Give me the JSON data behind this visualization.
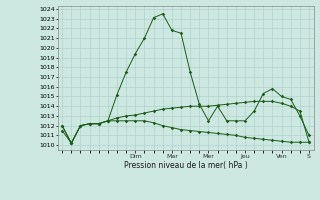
{
  "title": "Pression niveau de la mer( hPa )",
  "background_color": "#cce8e0",
  "grid_color": "#aacccc",
  "line_color": "#1a5c1a",
  "ylim": [
    1010,
    1024
  ],
  "yticks": [
    1010,
    1011,
    1012,
    1013,
    1014,
    1015,
    1016,
    1017,
    1018,
    1019,
    1020,
    1021,
    1022,
    1023,
    1024
  ],
  "day_labels": [
    "Dim",
    "Mar",
    "Mer",
    "Jeu",
    "Ven",
    "S"
  ],
  "day_positions": [
    8,
    12,
    16,
    20,
    24,
    27
  ],
  "line1_x": [
    0,
    1,
    2,
    3,
    4,
    5,
    6,
    7,
    8,
    9,
    10,
    11,
    12,
    13,
    14,
    15,
    16,
    17,
    18,
    19,
    20,
    21,
    22,
    23,
    24,
    25,
    26,
    27
  ],
  "line1_y": [
    1011.5,
    1010.2,
    1012.0,
    1012.2,
    1012.2,
    1012.5,
    1015.2,
    1017.5,
    1019.4,
    1021.0,
    1023.1,
    1023.5,
    1021.8,
    1021.5,
    1017.5,
    1014.2,
    1012.5,
    1014.0,
    1012.5,
    1012.5,
    1012.5,
    1013.5,
    1015.3,
    1015.8,
    1015.0,
    1014.7,
    1013.0,
    1011.0
  ],
  "line2_x": [
    0,
    1,
    2,
    3,
    4,
    5,
    6,
    7,
    8,
    9,
    10,
    11,
    12,
    13,
    14,
    15,
    16,
    17,
    18,
    19,
    20,
    21,
    22,
    23,
    24,
    25,
    26,
    27
  ],
  "line2_y": [
    1012.0,
    1010.2,
    1012.0,
    1012.2,
    1012.2,
    1012.5,
    1012.8,
    1013.0,
    1013.1,
    1013.3,
    1013.5,
    1013.7,
    1013.8,
    1013.9,
    1014.0,
    1014.0,
    1014.0,
    1014.1,
    1014.2,
    1014.3,
    1014.4,
    1014.5,
    1014.5,
    1014.5,
    1014.3,
    1014.0,
    1013.5,
    1010.3
  ],
  "line3_x": [
    0,
    1,
    2,
    3,
    4,
    5,
    6,
    7,
    8,
    9,
    10,
    11,
    12,
    13,
    14,
    15,
    16,
    17,
    18,
    19,
    20,
    21,
    22,
    23,
    24,
    25,
    26,
    27
  ],
  "line3_y": [
    1012.0,
    1010.2,
    1012.0,
    1012.2,
    1012.2,
    1012.5,
    1012.5,
    1012.5,
    1012.5,
    1012.5,
    1012.3,
    1012.0,
    1011.8,
    1011.6,
    1011.5,
    1011.4,
    1011.3,
    1011.2,
    1011.1,
    1011.0,
    1010.8,
    1010.7,
    1010.6,
    1010.5,
    1010.4,
    1010.3,
    1010.3,
    1010.3
  ]
}
